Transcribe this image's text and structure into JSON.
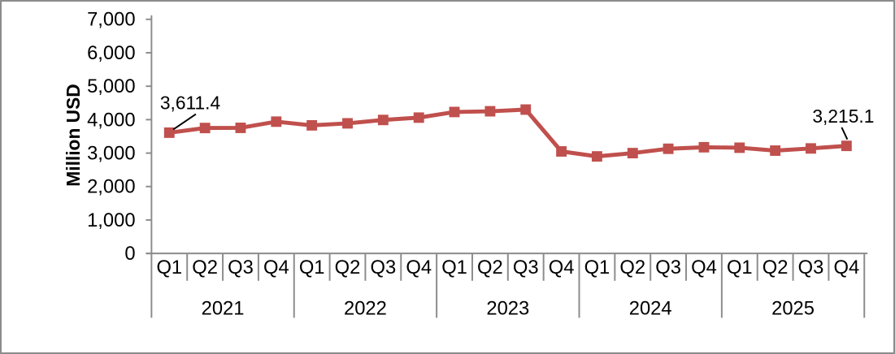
{
  "chart": {
    "y_axis": {
      "title": "Million USD",
      "tick_labels": [
        "0",
        "1,000",
        "2,000",
        "3,000",
        "4,000",
        "5,000",
        "6,000",
        "7,000"
      ]
    },
    "x_axis": {
      "years": [
        {
          "label": "2021",
          "quarters": [
            "Q1",
            "Q2",
            "Q3",
            "Q4"
          ]
        },
        {
          "label": "2022",
          "quarters": [
            "Q1",
            "Q2",
            "Q3",
            "Q4"
          ]
        },
        {
          "label": "2023",
          "quarters": [
            "Q1",
            "Q2",
            "Q3",
            "Q4"
          ]
        },
        {
          "label": "2024",
          "quarters": [
            "Q1",
            "Q2",
            "Q3",
            "Q4"
          ]
        },
        {
          "label": "2025",
          "quarters": [
            "Q1",
            "Q2",
            "Q3",
            "Q4"
          ]
        }
      ]
    },
    "annotations": {
      "first_point_label": "3,611.4",
      "last_point_label": "3,215.1"
    },
    "colors": {
      "series": "#C0504D",
      "axis_line": "#8C8C8C",
      "label_text": "#000000",
      "frame_border": "#8C8C8C"
    }
  },
  "chart_data": {
    "type": "line",
    "title": "",
    "ylabel": "Million USD",
    "ylim": [
      0,
      7000
    ],
    "ytick_step": 1000,
    "grid": false,
    "legend": "none",
    "marker": "square",
    "categories": [
      "2021 Q1",
      "2021 Q2",
      "2021 Q3",
      "2021 Q4",
      "2022 Q1",
      "2022 Q2",
      "2022 Q3",
      "2022 Q4",
      "2023 Q1",
      "2023 Q2",
      "2023 Q3",
      "2023 Q4",
      "2024 Q1",
      "2024 Q2",
      "2024 Q3",
      "2024 Q4",
      "2025 Q1",
      "2025 Q2",
      "2025 Q3",
      "2025 Q4"
    ],
    "values": [
      3611.4,
      3750,
      3755,
      3940,
      3830,
      3890,
      3990,
      4060,
      4230,
      4250,
      4300,
      3050,
      2900,
      3000,
      3130,
      3175,
      3160,
      3075,
      3140,
      3215.1
    ],
    "data_labels": {
      "2021 Q1": 3611.4,
      "2025 Q4": 3215.1
    }
  }
}
